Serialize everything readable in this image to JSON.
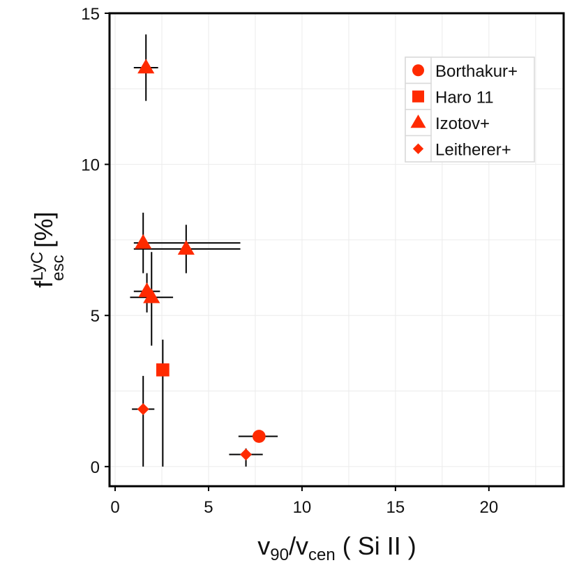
{
  "chart_data": {
    "type": "scatter",
    "title": "",
    "xlabel": {
      "main": "v",
      "sub1": "90",
      "slash": "/",
      "main2": "v",
      "sub2": "cen",
      "rest": " ( Si II )"
    },
    "ylabel": {
      "main": "f",
      "sup": "LyC",
      "sub": "esc",
      "rest": " [%]"
    },
    "xlim": [
      -0.3,
      24
    ],
    "ylim": [
      -0.65,
      15
    ],
    "x_ticks": [
      0,
      5,
      10,
      15,
      20
    ],
    "y_ticks": [
      0,
      5,
      10,
      15
    ],
    "x_tick_labels": [
      "0",
      "5",
      "10",
      "15",
      "20"
    ],
    "y_tick_labels": [
      "0",
      "5",
      "10",
      "15"
    ],
    "grid": true,
    "marker_color": "#ff2a00",
    "legend_position": "top-right",
    "series": [
      {
        "name": "Borthakur+",
        "marker": "circle",
        "points": [
          {
            "x": 7.7,
            "y": 1.0,
            "xerr": [
              6.6,
              8.7
            ],
            "yerr": null
          }
        ]
      },
      {
        "name": "Haro 11",
        "marker": "square",
        "points": [
          {
            "x": 2.55,
            "y": 3.2,
            "xerr": null,
            "yerr": [
              0.0,
              4.2
            ]
          }
        ]
      },
      {
        "name": "Izotov+",
        "marker": "triangle",
        "points": [
          {
            "x": 1.65,
            "y": 13.2,
            "xerr": [
              1.0,
              2.3
            ],
            "yerr": [
              12.1,
              14.3
            ]
          },
          {
            "x": 1.5,
            "y": 7.4,
            "xerr": [
              1.0,
              6.7
            ],
            "yerr": [
              6.4,
              8.4
            ]
          },
          {
            "x": 3.8,
            "y": 7.2,
            "xerr": [
              1.0,
              6.7
            ],
            "yerr": [
              6.4,
              8.0
            ]
          },
          {
            "x": 1.7,
            "y": 5.8,
            "xerr": [
              1.0,
              2.4
            ],
            "yerr": [
              5.1,
              6.4
            ]
          },
          {
            "x": 1.95,
            "y": 5.6,
            "xerr": [
              0.8,
              3.1
            ],
            "yerr": [
              4.0,
              7.1
            ]
          }
        ]
      },
      {
        "name": "Leitherer+",
        "marker": "diamond",
        "points": [
          {
            "x": 1.5,
            "y": 1.9,
            "xerr": [
              0.9,
              2.1
            ],
            "yerr": [
              0.0,
              3.0
            ]
          },
          {
            "x": 7.0,
            "y": 0.4,
            "xerr": [
              6.1,
              7.9
            ],
            "yerr": [
              0.0,
              0.6
            ]
          }
        ]
      }
    ]
  }
}
